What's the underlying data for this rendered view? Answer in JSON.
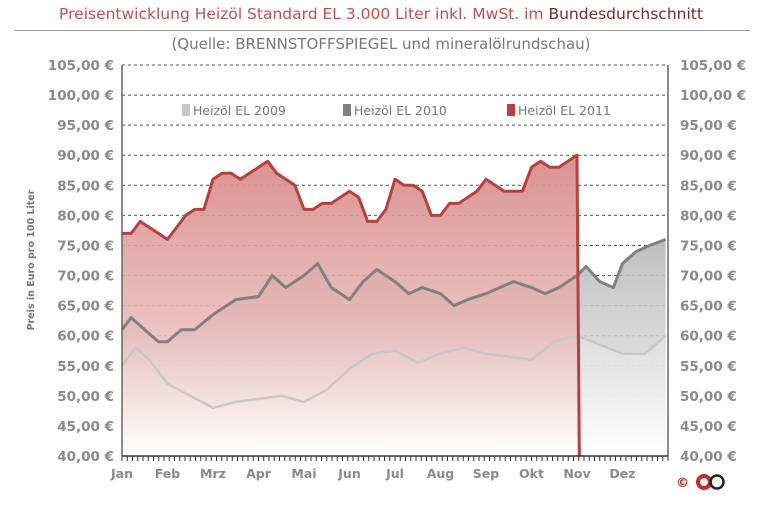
{
  "header": {
    "title_main": "Preisentwicklung Heizöl Standard EL 3.000 Liter inkl. MwSt. im",
    "title_suffix": "Bundesdurchschnitt",
    "subtitle": "(Quelle: BRENNSTOFFSPIEGEL  und mineralölrundschau)"
  },
  "copyright": "©",
  "colors": {
    "series_2009": "#c8c8c8",
    "series_2010": "#808080",
    "series_2011": "#b84040",
    "fill_2011": "#d99a98",
    "fill_2010": "#bcbcbc"
  },
  "chart_data": {
    "type": "area",
    "ylabel": "Preis in Euro pro 100 Liter",
    "xlabel": "",
    "ylim": [
      40,
      105
    ],
    "y_ticks": [
      "40,00 €",
      "45,00 €",
      "50,00 €",
      "55,00 €",
      "60,00 €",
      "65,00 €",
      "70,00 €",
      "75,00 €",
      "80,00 €",
      "85,00 €",
      "90,00 €",
      "95,00 €",
      "100,00 €",
      "105,00 €"
    ],
    "grid": true,
    "legend_position": "top",
    "categories": [
      "Jan",
      "Feb",
      "Mrz",
      "Apr",
      "Mai",
      "Jun",
      "Jul",
      "Aug",
      "Sep",
      "Okt",
      "Nov",
      "Dez"
    ],
    "series": [
      {
        "name": "Heizöl EL 2009",
        "x": [
          0,
          0.3,
          0.6,
          1,
          1.5,
          2,
          2.5,
          3,
          3.5,
          4,
          4.5,
          5,
          5.5,
          6,
          6.5,
          7,
          7.5,
          8,
          8.5,
          9,
          9.5,
          10,
          10.5,
          11,
          11.5,
          11.95
        ],
        "values": [
          55,
          58,
          56,
          52,
          50,
          48,
          49,
          49.5,
          50,
          49,
          51,
          54.5,
          57,
          57.5,
          55.5,
          57,
          58,
          57,
          56.5,
          56,
          59,
          60,
          58.5,
          57,
          57,
          60
        ]
      },
      {
        "name": "Heizöl EL 2010",
        "x": [
          0,
          0.2,
          0.5,
          0.8,
          1,
          1.3,
          1.6,
          2,
          2.5,
          3,
          3.3,
          3.6,
          4,
          4.3,
          4.6,
          5,
          5.3,
          5.6,
          6,
          6.3,
          6.6,
          7,
          7.3,
          7.6,
          8,
          8.3,
          8.6,
          9,
          9.3,
          9.6,
          10,
          10.2,
          10.5,
          10.8,
          11,
          11.3,
          11.6,
          11.95
        ],
        "values": [
          61,
          63,
          61,
          59,
          59,
          61,
          61,
          63.5,
          66,
          66.5,
          70,
          68,
          70,
          72,
          68,
          66,
          69,
          71,
          69,
          67,
          68,
          67,
          65,
          66,
          67,
          68,
          69,
          68,
          67,
          68,
          70,
          71.5,
          69,
          68,
          72,
          74,
          75,
          76
        ]
      },
      {
        "name": "Heizöl EL 2011",
        "x": [
          0,
          0.2,
          0.4,
          0.6,
          0.8,
          1,
          1.2,
          1.4,
          1.6,
          1.8,
          2,
          2.2,
          2.4,
          2.6,
          2.8,
          3,
          3.2,
          3.4,
          3.6,
          3.8,
          4,
          4.2,
          4.4,
          4.6,
          4.8,
          5,
          5.2,
          5.4,
          5.6,
          5.8,
          6,
          6.2,
          6.4,
          6.6,
          6.8,
          7,
          7.2,
          7.4,
          7.6,
          7.8,
          8,
          8.2,
          8.4,
          8.6,
          8.8,
          9,
          9.2,
          9.4,
          9.6,
          9.8,
          10,
          10.05
        ],
        "values": [
          77,
          77,
          79,
          78,
          77,
          76,
          78,
          80,
          81,
          81,
          86,
          87,
          87,
          86,
          87,
          88,
          89,
          87,
          86,
          85,
          81,
          81,
          82,
          82,
          83,
          84,
          83,
          79,
          79,
          81,
          86,
          85,
          85,
          84,
          80,
          80,
          82,
          82,
          83,
          84,
          86,
          85,
          84,
          84,
          84,
          88,
          89,
          88,
          88,
          89,
          90,
          40
        ]
      }
    ]
  }
}
